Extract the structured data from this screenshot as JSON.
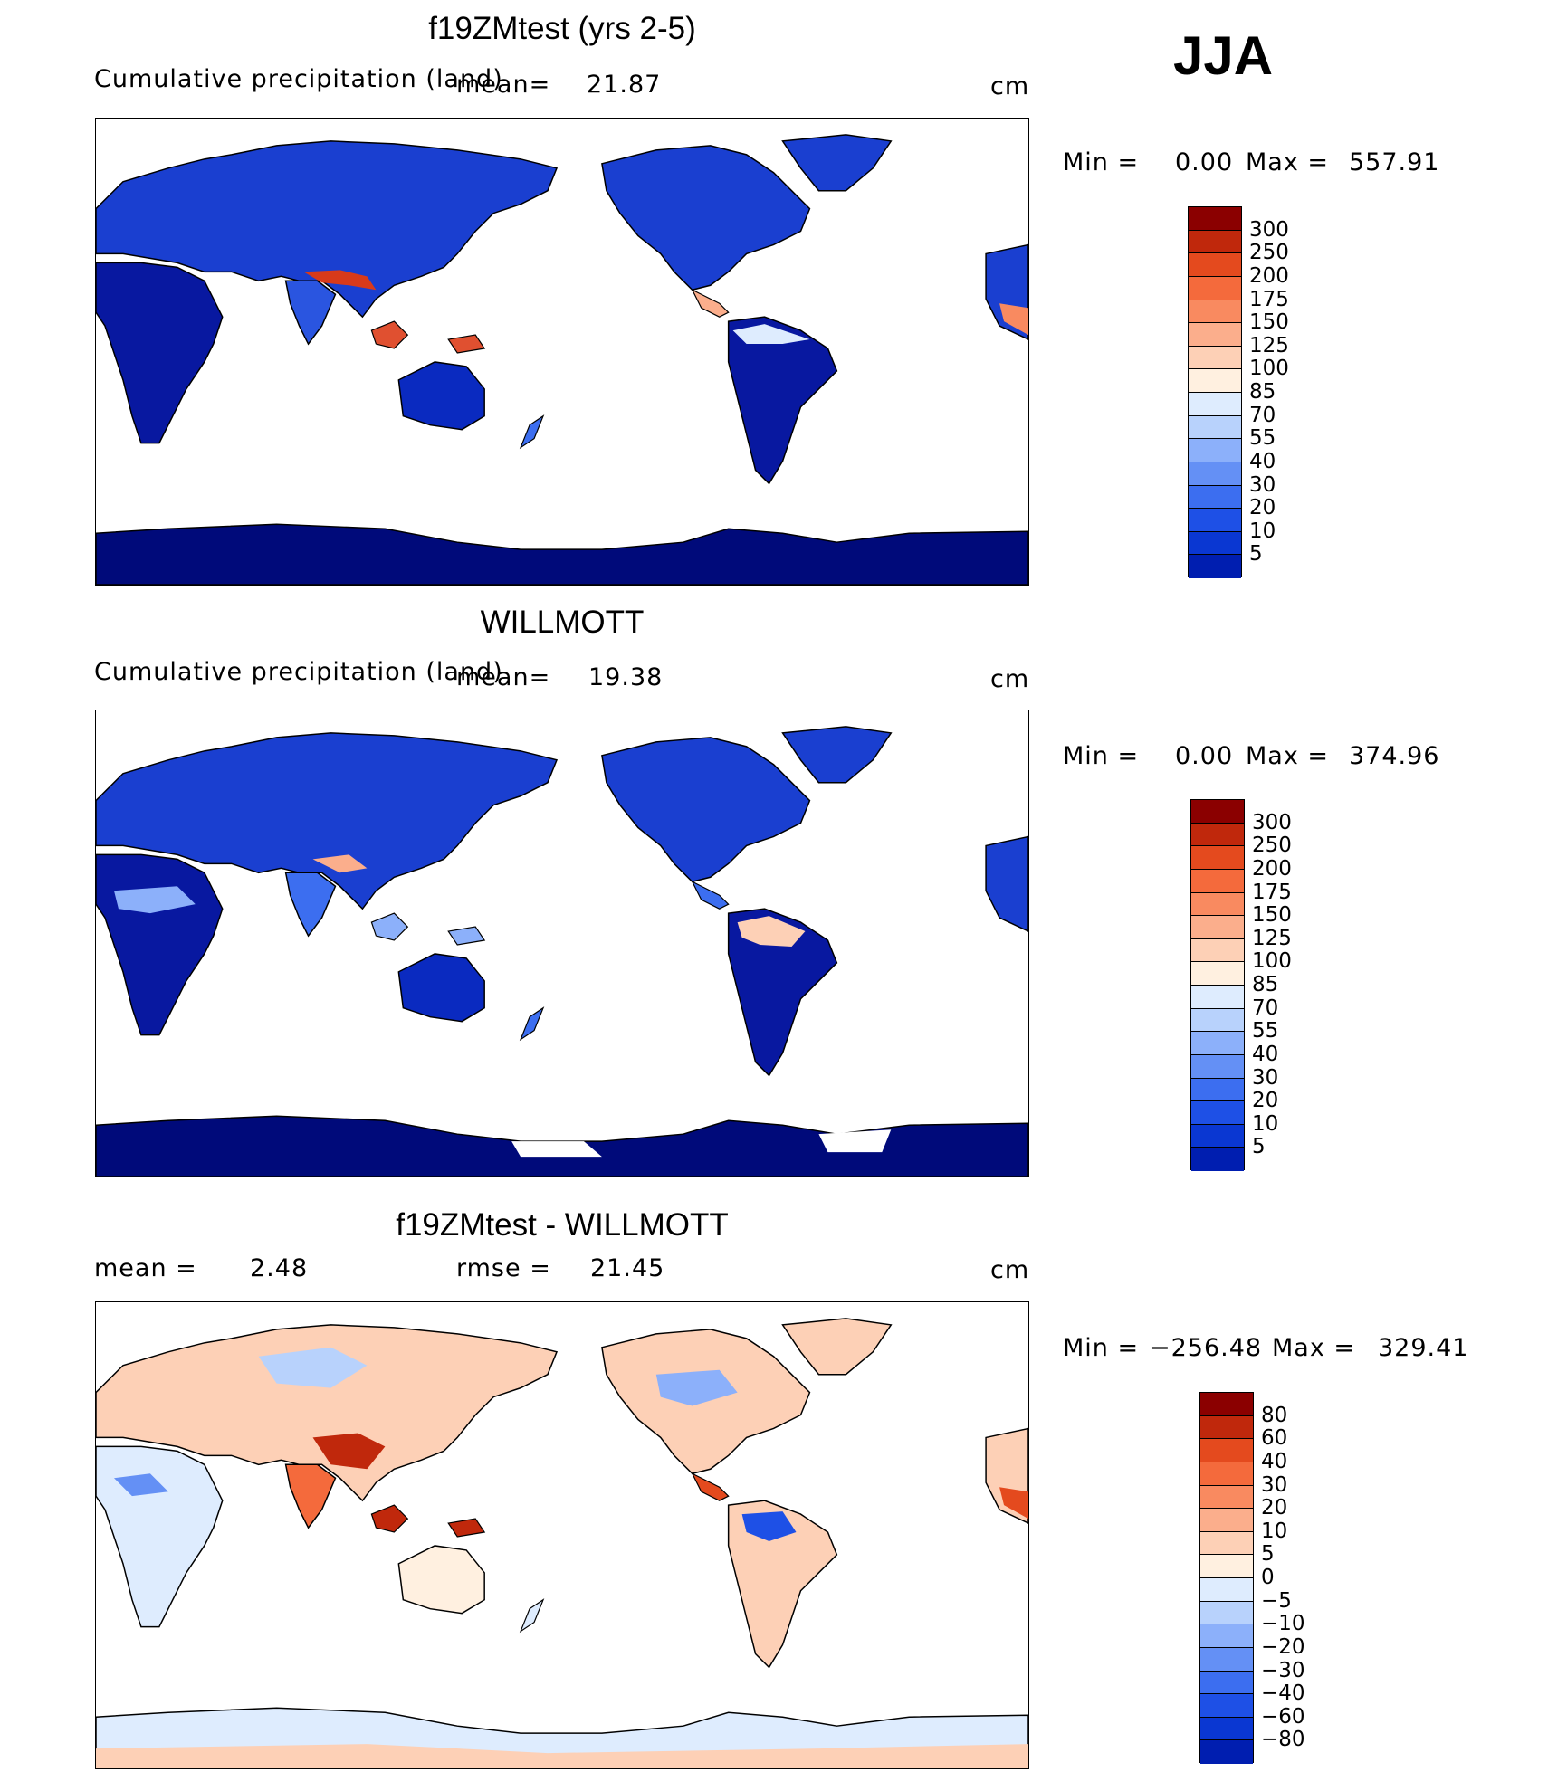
{
  "season": "JJA",
  "units": "cm",
  "colors": {
    "ocean": "#ffffff",
    "coast": "#000000",
    "precip_scale": [
      "#000a7a",
      "#001eb0",
      "#0a37d2",
      "#1e50e6",
      "#3c6ef0",
      "#6490f5",
      "#8cb0fa",
      "#b8d2fc",
      "#deecfe",
      "#fff0e0",
      "#fdd0b6",
      "#fbae8c",
      "#f98a60",
      "#f46a3c",
      "#e44a1e",
      "#c0280c",
      "#8b0000"
    ],
    "diff_scale": [
      "#000a7a",
      "#001eb0",
      "#0a37d2",
      "#1e50e6",
      "#3c6ef0",
      "#6490f5",
      "#8cb0fa",
      "#b8d2fc",
      "#deecfe",
      "#fff0e0",
      "#fdd0b6",
      "#fbae8c",
      "#f98a60",
      "#f46a3c",
      "#e44a1e",
      "#c0280c",
      "#8b0000"
    ]
  },
  "panels": [
    {
      "title": "f19ZMtest (yrs 2-5)",
      "variable": "Cumulative precipitation (land)",
      "mean_label": "mean=",
      "mean_value": "21.87",
      "units": "cm",
      "min_label": "Min =",
      "min_value": "0.00",
      "max_label": "Max =",
      "max_value": "557.91",
      "colorbar_ticks": [
        "300",
        "250",
        "200",
        "175",
        "150",
        "125",
        "100",
        "85",
        "70",
        "55",
        "40",
        "30",
        "20",
        "10",
        "5"
      ]
    },
    {
      "title": "WILLMOTT",
      "variable": "Cumulative precipitation (land)",
      "mean_label": "mean=",
      "mean_value": "19.38",
      "units": "cm",
      "min_label": "Min =",
      "min_value": "0.00",
      "max_label": "Max =",
      "max_value": "374.96",
      "colorbar_ticks": [
        "300",
        "250",
        "200",
        "175",
        "150",
        "125",
        "100",
        "85",
        "70",
        "55",
        "40",
        "30",
        "20",
        "10",
        "5"
      ]
    },
    {
      "title": "f19ZMtest - WILLMOTT",
      "mean_label": "mean =",
      "mean_value": "2.48",
      "rmse_label": "rmse =",
      "rmse_value": "21.45",
      "units": "cm",
      "min_label": "Min =",
      "min_value": "−256.48",
      "max_label": "Max =",
      "max_value": "329.41",
      "colorbar_ticks": [
        "80",
        "60",
        "40",
        "30",
        "20",
        "10",
        "5",
        "0",
        "−5",
        "−10",
        "−20",
        "−30",
        "−40",
        "−60",
        "−80"
      ]
    }
  ],
  "chart_data": [
    {
      "type": "heatmap",
      "title": "f19ZMtest (yrs 2-5)",
      "subtitle": "Cumulative precipitation (land)",
      "season": "JJA",
      "mean": 21.87,
      "min": 0.0,
      "max": 557.91,
      "units": "cm",
      "levels": [
        5,
        10,
        20,
        30,
        40,
        55,
        70,
        85,
        100,
        125,
        150,
        175,
        200,
        250,
        300
      ]
    },
    {
      "type": "heatmap",
      "title": "WILLMOTT",
      "subtitle": "Cumulative precipitation (land)",
      "season": "JJA",
      "mean": 19.38,
      "min": 0.0,
      "max": 374.96,
      "units": "cm",
      "levels": [
        5,
        10,
        20,
        30,
        40,
        55,
        70,
        85,
        100,
        125,
        150,
        175,
        200,
        250,
        300
      ]
    },
    {
      "type": "heatmap",
      "title": "f19ZMtest - WILLMOTT",
      "season": "JJA",
      "mean": 2.48,
      "rmse": 21.45,
      "min": -256.48,
      "max": 329.41,
      "units": "cm",
      "levels": [
        -80,
        -60,
        -40,
        -30,
        -20,
        -10,
        -5,
        0,
        5,
        10,
        20,
        30,
        40,
        60,
        80
      ]
    }
  ]
}
